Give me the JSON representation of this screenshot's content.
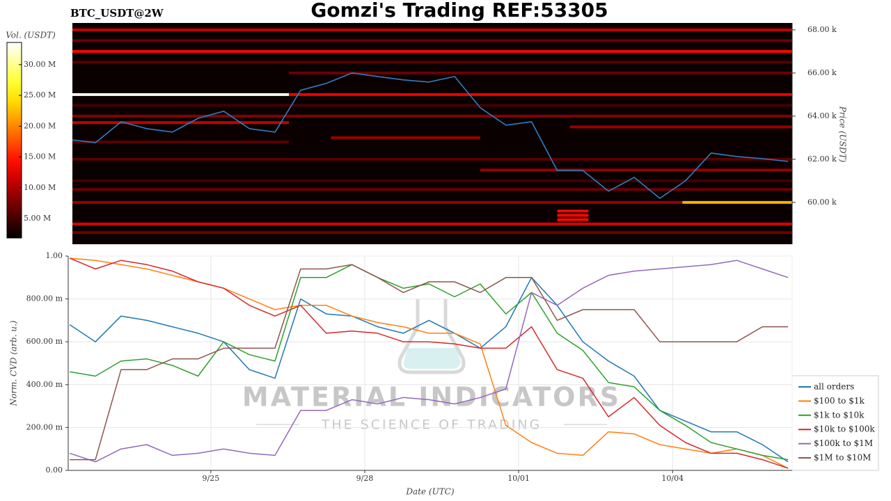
{
  "chart_data": [
    {
      "type": "heatmap",
      "title": "Gomzi's Trading REF:53305",
      "subtitle": "BTC_USDT@2W",
      "ylabel": "Price (USDT)",
      "xlim": [
        22.3,
        36.33
      ],
      "ylim": [
        58060,
        68320
      ],
      "yticks": [
        {
          "value": 60000,
          "label": "60.00 k"
        },
        {
          "value": 62000,
          "label": "62.00 k"
        },
        {
          "value": 64000,
          "label": "64.00 k"
        },
        {
          "value": 66000,
          "label": "66.00 k"
        },
        {
          "value": 68000,
          "label": "68.00 k"
        }
      ],
      "x": [
        22.3,
        22.75,
        23.25,
        23.75,
        24.25,
        24.75,
        25.25,
        25.75,
        26.25,
        26.75,
        27.25,
        27.75,
        28.25,
        28.75,
        29.25,
        29.75,
        30.25,
        30.75,
        31.25,
        31.75,
        32.25,
        32.75,
        33.25,
        33.75,
        34.25,
        34.75,
        35.25,
        35.75,
        36.25
      ],
      "values": [
        62900,
        62770,
        63740,
        63420,
        63260,
        63900,
        64230,
        63420,
        63260,
        65200,
        65520,
        66000,
        65840,
        65680,
        65580,
        65840,
        64390,
        63580,
        63740,
        61480,
        61480,
        60520,
        61160,
        60190,
        61000,
        62290,
        62130,
        62030,
        61900
      ],
      "color": "#2f7fc1",
      "colorbar": {
        "label": "Vol. (USDT)",
        "clim": [
          1840000,
          33600000
        ],
        "ticks": [
          {
            "value": 5000000,
            "label": "5.00 M"
          },
          {
            "value": 10000000,
            "label": "10.00 M"
          },
          {
            "value": 15000000,
            "label": "15.00 M"
          },
          {
            "value": 20000000,
            "label": "20.00 M"
          },
          {
            "value": 25000000,
            "label": "25.00 M"
          },
          {
            "value": 30000000,
            "label": "30.00 M"
          }
        ]
      },
      "bands": [
        {
          "x": [
            22.3,
            26.52
          ],
          "price": 65000,
          "volume": 33000000
        },
        {
          "x": [
            26.52,
            36.33
          ],
          "price": 65000,
          "volume": 13000000
        },
        {
          "x": [
            22.3,
            36.33
          ],
          "price": 68000,
          "volume": 11000000
        },
        {
          "x": [
            22.3,
            36.33
          ],
          "price": 67000,
          "volume": 14000000
        },
        {
          "x": [
            22.3,
            36.33
          ],
          "price": 67500,
          "volume": 7000000
        },
        {
          "x": [
            22.3,
            36.33
          ],
          "price": 66500,
          "volume": 6000000
        },
        {
          "x": [
            22.3,
            36.33
          ],
          "price": 64000,
          "volume": 8000000
        },
        {
          "x": [
            22.3,
            26.52
          ],
          "price": 63700,
          "volume": 11000000
        },
        {
          "x": [
            27.34,
            30.25
          ],
          "price": 63000,
          "volume": 9000000
        },
        {
          "x": [
            22.3,
            36.33
          ],
          "price": 62000,
          "volume": 6000000
        },
        {
          "x": [
            30.25,
            36.33
          ],
          "price": 61500,
          "volume": 9000000
        },
        {
          "x": [
            22.3,
            36.33
          ],
          "price": 60600,
          "volume": 7000000
        },
        {
          "x": [
            22.3,
            34.19
          ],
          "price": 60000,
          "volume": 9000000
        },
        {
          "x": [
            34.19,
            36.33
          ],
          "price": 60000,
          "volume": 22000000
        },
        {
          "x": [
            31.75,
            32.36
          ],
          "price": 59600,
          "volume": 14000000
        },
        {
          "x": [
            31.75,
            32.36
          ],
          "price": 59400,
          "volume": 14000000
        },
        {
          "x": [
            31.75,
            32.36
          ],
          "price": 59200,
          "volume": 14000000
        },
        {
          "x": [
            22.3,
            36.33
          ],
          "price": 59000,
          "volume": 12000000
        },
        {
          "x": [
            22.3,
            36.33
          ],
          "price": 58600,
          "volume": 7000000
        },
        {
          "x": [
            26.52,
            36.33
          ],
          "price": 66000,
          "volume": 7000000
        },
        {
          "x": [
            22.3,
            26.52
          ],
          "price": 62800,
          "volume": 6000000
        },
        {
          "x": [
            32.0,
            36.33
          ],
          "price": 63500,
          "volume": 9000000
        },
        {
          "x": [
            22.3,
            36.33
          ],
          "price": 64500,
          "volume": 5000000
        },
        {
          "x": [
            22.3,
            36.33
          ],
          "price": 61000,
          "volume": 5000000
        }
      ]
    },
    {
      "type": "line",
      "xlabel": "Date (UTC)",
      "ylabel": "Norm. CVD (arb. u.)",
      "watermark": [
        "MATERIAL INDICATORS",
        "THE SCIENCE OF TRADING"
      ],
      "xlim": [
        22.22,
        36.33
      ],
      "ylim": [
        0,
        1
      ],
      "xticks": [
        {
          "value": 25,
          "label": "9/25"
        },
        {
          "value": 28,
          "label": "9/28"
        },
        {
          "value": 31,
          "label": "10/01"
        },
        {
          "value": 34,
          "label": "10/04"
        }
      ],
      "yticks": [
        {
          "value": 0,
          "label": "0.00"
        },
        {
          "value": 0.2,
          "label": "200.00 m"
        },
        {
          "value": 0.4,
          "label": "400.00 m"
        },
        {
          "value": 0.6,
          "label": "600.00 m"
        },
        {
          "value": 0.8,
          "label": "800.00 m"
        },
        {
          "value": 1,
          "label": "1.00"
        }
      ],
      "grid": true,
      "legend": "lower right outside",
      "x": [
        22.25,
        22.75,
        23.25,
        23.75,
        24.25,
        24.75,
        25.25,
        25.75,
        26.25,
        26.75,
        27.25,
        27.75,
        28.25,
        28.75,
        29.25,
        29.75,
        30.25,
        30.75,
        31.25,
        31.75,
        32.25,
        32.75,
        33.25,
        33.75,
        34.25,
        34.75,
        35.25,
        35.75,
        36.25
      ],
      "series": [
        {
          "name": "all orders",
          "color": "#1f77b4",
          "values": [
            0.68,
            0.6,
            0.72,
            0.7,
            0.67,
            0.64,
            0.6,
            0.47,
            0.43,
            0.8,
            0.73,
            0.72,
            0.67,
            0.64,
            0.7,
            0.64,
            0.57,
            0.67,
            0.9,
            0.77,
            0.6,
            0.51,
            0.44,
            0.28,
            0.23,
            0.18,
            0.18,
            0.12,
            0.04
          ]
        },
        {
          "name": "$100 to $1k",
          "color": "#ff7f0e",
          "values": [
            0.99,
            0.98,
            0.96,
            0.94,
            0.91,
            0.88,
            0.85,
            0.8,
            0.75,
            0.77,
            0.77,
            0.72,
            0.69,
            0.67,
            0.64,
            0.64,
            0.59,
            0.21,
            0.13,
            0.08,
            0.07,
            0.18,
            0.17,
            0.12,
            0.1,
            0.08,
            0.1,
            0.07,
            0.01
          ]
        },
        {
          "name": "$1k to $10k",
          "color": "#2ca02c",
          "values": [
            0.46,
            0.44,
            0.51,
            0.52,
            0.49,
            0.44,
            0.6,
            0.54,
            0.51,
            0.9,
            0.9,
            0.96,
            0.9,
            0.85,
            0.87,
            0.81,
            0.87,
            0.73,
            0.83,
            0.64,
            0.56,
            0.41,
            0.39,
            0.28,
            0.21,
            0.13,
            0.1,
            0.07,
            0.05
          ]
        },
        {
          "name": "$10k to $100k",
          "color": "#d62728",
          "values": [
            0.99,
            0.94,
            0.98,
            0.96,
            0.93,
            0.88,
            0.85,
            0.77,
            0.72,
            0.77,
            0.64,
            0.65,
            0.64,
            0.6,
            0.6,
            0.59,
            0.57,
            0.57,
            0.67,
            0.47,
            0.43,
            0.25,
            0.34,
            0.21,
            0.13,
            0.08,
            0.08,
            0.05,
            0.01
          ]
        },
        {
          "name": "$100k to $1M",
          "color": "#9467bd",
          "values": [
            0.08,
            0.04,
            0.1,
            0.12,
            0.07,
            0.08,
            0.1,
            0.08,
            0.07,
            0.28,
            0.28,
            0.33,
            0.31,
            0.34,
            0.33,
            0.31,
            0.34,
            0.38,
            0.83,
            0.77,
            0.85,
            0.91,
            0.93,
            0.94,
            0.95,
            0.96,
            0.98,
            0.94,
            0.9
          ]
        },
        {
          "name": "$1M to $10M",
          "color": "#8c564b",
          "values": [
            0.05,
            0.05,
            0.47,
            0.47,
            0.52,
            0.52,
            0.57,
            0.57,
            0.57,
            0.94,
            0.94,
            0.96,
            0.9,
            0.83,
            0.88,
            0.88,
            0.83,
            0.9,
            0.9,
            0.7,
            0.75,
            0.75,
            0.75,
            0.6,
            0.6,
            0.6,
            0.6,
            0.67,
            0.67
          ]
        }
      ]
    }
  ]
}
